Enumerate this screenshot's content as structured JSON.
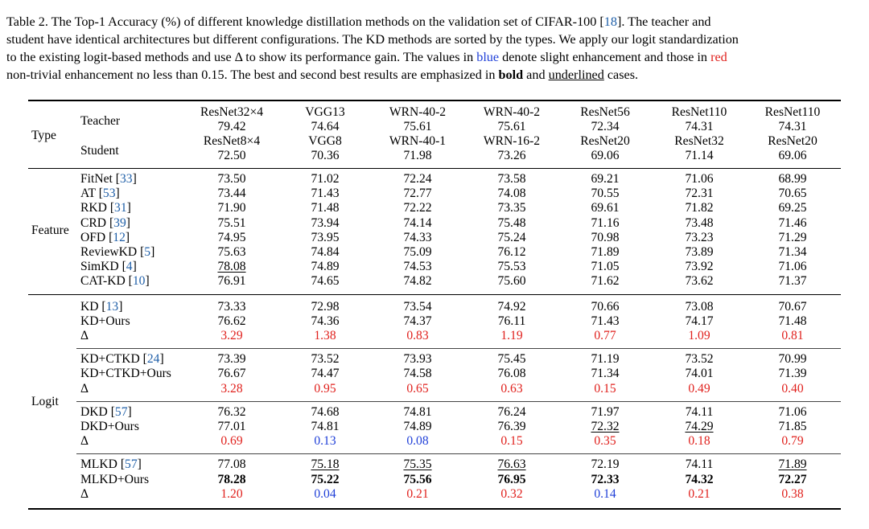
{
  "caption": {
    "lines": [
      [
        {
          "t": "Table 2. The Top-1 Accuracy (%) of different knowledge distillation methods on the validation set of CIFAR-100 ["
        },
        {
          "t": "18",
          "ref": true
        },
        {
          "t": "]. The teacher and"
        }
      ],
      [
        {
          "t": "student have identical architectures but different configurations. The KD methods are sorted by the types. We apply our logit standardization"
        }
      ],
      [
        {
          "t": "to the existing logit-based methods and use Δ to show its performance gain. The values in "
        },
        {
          "t": "blue",
          "color": "blue"
        },
        {
          "t": " denote slight enhancement and those in "
        },
        {
          "t": "red",
          "color": "red"
        }
      ],
      [
        {
          "t": "non-trivial enhancement no less than 0.15. The best and second best results are emphasized in "
        },
        {
          "t": "bold",
          "bold": true
        },
        {
          "t": " and "
        },
        {
          "t": "underlined",
          "underline": true
        },
        {
          "t": " cases."
        }
      ]
    ]
  },
  "header": {
    "type_label": "Type",
    "teacher_label": "Teacher",
    "student_label": "Student",
    "columns": [
      {
        "teacher": "ResNet32×4",
        "teacher_acc": "79.42",
        "student": "ResNet8×4",
        "student_acc": "72.50"
      },
      {
        "teacher": "VGG13",
        "teacher_acc": "74.64",
        "student": "VGG8",
        "student_acc": "70.36"
      },
      {
        "teacher": "WRN-40-2",
        "teacher_acc": "75.61",
        "student": "WRN-40-1",
        "student_acc": "71.98"
      },
      {
        "teacher": "WRN-40-2",
        "teacher_acc": "75.61",
        "student": "WRN-16-2",
        "student_acc": "73.26"
      },
      {
        "teacher": "ResNet56",
        "teacher_acc": "72.34",
        "student": "ResNet20",
        "student_acc": "69.06"
      },
      {
        "teacher": "ResNet110",
        "teacher_acc": "74.31",
        "student": "ResNet32",
        "student_acc": "71.14"
      },
      {
        "teacher": "ResNet110",
        "teacher_acc": "74.31",
        "student": "ResNet20",
        "student_acc": "69.06"
      }
    ]
  },
  "sections": [
    {
      "type": "Feature",
      "groups": [
        {
          "rows": [
            {
              "method": "FitNet ",
              "ref": "33",
              "values": [
                "73.50",
                "71.02",
                "72.24",
                "73.58",
                "69.21",
                "71.06",
                "68.99"
              ]
            },
            {
              "method": "AT ",
              "ref": "53",
              "values": [
                "73.44",
                "71.43",
                "72.77",
                "74.08",
                "70.55",
                "72.31",
                "70.65"
              ]
            },
            {
              "method": "RKD ",
              "ref": "31",
              "values": [
                "71.90",
                "71.48",
                "72.22",
                "73.35",
                "69.61",
                "71.82",
                "69.25"
              ]
            },
            {
              "method": "CRD ",
              "ref": "39",
              "values": [
                "75.51",
                "73.94",
                "74.14",
                "75.48",
                "71.16",
                "73.48",
                "71.46"
              ]
            },
            {
              "method": "OFD ",
              "ref": "12",
              "values": [
                "74.95",
                "73.95",
                "74.33",
                "75.24",
                "70.98",
                "73.23",
                "71.29"
              ]
            },
            {
              "method": "ReviewKD ",
              "ref": "5",
              "values": [
                "75.63",
                "74.84",
                "75.09",
                "76.12",
                "71.89",
                "73.89",
                "71.34"
              ]
            },
            {
              "method": "SimKD ",
              "ref": "4",
              "values": [
                "78.08",
                "74.89",
                "74.53",
                "75.53",
                "71.05",
                "73.92",
                "71.06"
              ],
              "underline": [
                0
              ]
            },
            {
              "method": "CAT-KD ",
              "ref": "10",
              "values": [
                "76.91",
                "74.65",
                "74.82",
                "75.60",
                "71.62",
                "73.62",
                "71.37"
              ]
            }
          ]
        }
      ]
    },
    {
      "type": "Logit",
      "groups": [
        {
          "rows": [
            {
              "method": "KD ",
              "ref": "13",
              "values": [
                "73.33",
                "72.98",
                "73.54",
                "74.92",
                "70.66",
                "73.08",
                "70.67"
              ]
            },
            {
              "method": "KD+Ours",
              "values": [
                "76.62",
                "74.36",
                "74.37",
                "76.11",
                "71.43",
                "74.17",
                "71.48"
              ]
            },
            {
              "method": "Δ",
              "delta": true,
              "values": [
                "3.29",
                "1.38",
                "0.83",
                "1.19",
                "0.77",
                "1.09",
                "0.81"
              ],
              "colors": [
                "red",
                "red",
                "red",
                "red",
                "red",
                "red",
                "red"
              ]
            }
          ]
        },
        {
          "rows": [
            {
              "method": "KD+CTKD ",
              "ref": "24",
              "values": [
                "73.39",
                "73.52",
                "73.93",
                "75.45",
                "71.19",
                "73.52",
                "70.99"
              ]
            },
            {
              "method": "KD+CTKD+Ours",
              "values": [
                "76.67",
                "74.47",
                "74.58",
                "76.08",
                "71.34",
                "74.01",
                "71.39"
              ]
            },
            {
              "method": "Δ",
              "delta": true,
              "values": [
                "3.28",
                "0.95",
                "0.65",
                "0.63",
                "0.15",
                "0.49",
                "0.40"
              ],
              "colors": [
                "red",
                "red",
                "red",
                "red",
                "red",
                "red",
                "red"
              ]
            }
          ]
        },
        {
          "rows": [
            {
              "method": "DKD ",
              "ref": "57",
              "values": [
                "76.32",
                "74.68",
                "74.81",
                "76.24",
                "71.97",
                "74.11",
                "71.06"
              ]
            },
            {
              "method": "DKD+Ours",
              "values": [
                "77.01",
                "74.81",
                "74.89",
                "76.39",
                "72.32",
                "74.29",
                "71.85"
              ],
              "underline": [
                4,
                5
              ]
            },
            {
              "method": "Δ",
              "delta": true,
              "values": [
                "0.69",
                "0.13",
                "0.08",
                "0.15",
                "0.35",
                "0.18",
                "0.79"
              ],
              "colors": [
                "red",
                "blue",
                "blue",
                "red",
                "red",
                "red",
                "red"
              ]
            }
          ]
        },
        {
          "rows": [
            {
              "method": "MLKD ",
              "ref": "57",
              "values": [
                "77.08",
                "75.18",
                "75.35",
                "76.63",
                "72.19",
                "74.11",
                "71.89"
              ],
              "underline": [
                1,
                2,
                3,
                6
              ]
            },
            {
              "method": "MLKD+Ours",
              "values": [
                "78.28",
                "75.22",
                "75.56",
                "76.95",
                "72.33",
                "74.32",
                "72.27"
              ],
              "bold": [
                0,
                1,
                2,
                3,
                4,
                5,
                6
              ]
            },
            {
              "method": "Δ",
              "delta": true,
              "values": [
                "1.20",
                "0.04",
                "0.21",
                "0.32",
                "0.14",
                "0.21",
                "0.38"
              ],
              "colors": [
                "red",
                "blue",
                "red",
                "red",
                "blue",
                "red",
                "red"
              ]
            }
          ]
        }
      ]
    }
  ]
}
